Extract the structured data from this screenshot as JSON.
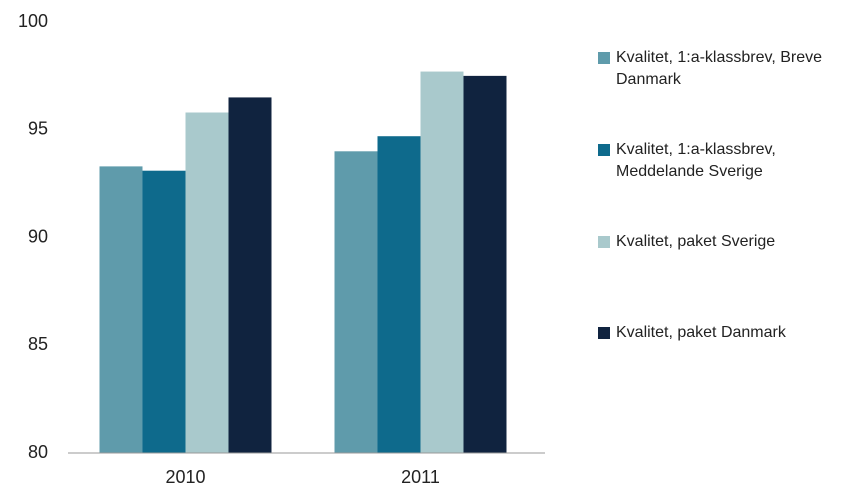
{
  "chart_data": {
    "type": "bar",
    "categories": [
      "2010",
      "2011"
    ],
    "series": [
      {
        "name": "Kvalitet, 1:a-klassbrev, Breve Danmark",
        "color": "#5f9bab",
        "values": [
          93.3,
          94.0
        ]
      },
      {
        "name": "Kvalitet, 1:a-klassbrev, Meddelande Sverige",
        "color": "#0e6a8c",
        "values": [
          93.1,
          94.7
        ]
      },
      {
        "name": "Kvalitet, paket Sverige",
        "color": "#a9c9cc",
        "values": [
          95.8,
          97.7
        ]
      },
      {
        "name": "Kvalitet, paket Danmark",
        "color": "#10233f",
        "values": [
          96.5,
          97.5
        ]
      }
    ],
    "ylim": [
      80,
      100
    ],
    "yticks": [
      80,
      85,
      90,
      95,
      100
    ],
    "grid": false,
    "legend": "right"
  }
}
